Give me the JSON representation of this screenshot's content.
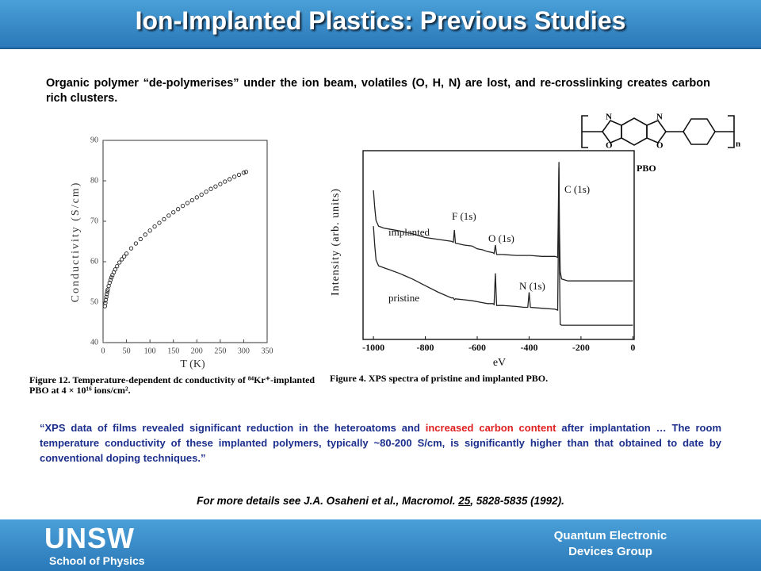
{
  "header": {
    "title": "Ion-Implanted Plastics: Previous Studies"
  },
  "intro": "Organic polymer “de-polymerises” under the ion beam, volatiles (O, H, N) are lost, and re-crosslinking creates carbon rich clusters.",
  "structure": {
    "label": "PBO",
    "repeat": "n"
  },
  "chart_data": [
    {
      "type": "scatter",
      "x_label": "T (K)",
      "y_label": "Conductivity (S/cm)",
      "x": [
        4,
        5,
        6,
        7,
        8,
        9,
        10,
        12,
        14,
        16,
        18,
        20,
        23,
        26,
        30,
        35,
        40,
        45,
        50,
        60,
        70,
        80,
        90,
        100,
        110,
        120,
        130,
        140,
        150,
        160,
        170,
        180,
        190,
        200,
        210,
        220,
        230,
        240,
        250,
        260,
        270,
        280,
        290,
        300,
        305
      ],
      "values": [
        49,
        49.8,
        50.6,
        51.3,
        52,
        52.6,
        53.1,
        54,
        54.8,
        55.5,
        56.1,
        56.7,
        57.4,
        58.1,
        58.9,
        59.8,
        60.6,
        61.3,
        62,
        63.3,
        64.5,
        65.6,
        66.7,
        67.7,
        68.7,
        69.6,
        70.5,
        71.4,
        72.2,
        73,
        73.8,
        74.5,
        75.2,
        75.9,
        76.6,
        77.3,
        78,
        78.6,
        79.2,
        79.8,
        80.4,
        81,
        81.5,
        82,
        82.2
      ],
      "color": "#222222",
      "xlim": [
        0,
        350
      ],
      "xticks": [
        0,
        50,
        100,
        150,
        200,
        250,
        300,
        350
      ],
      "ylim": [
        40,
        90
      ],
      "yticks": [
        40,
        50,
        60,
        70,
        80,
        90
      ],
      "caption": "Figure 12. Temperature-dependent dc conductivity of ⁸⁴Kr⁺-implanted PBO at 4 × 10¹⁶ ions/cm²."
    },
    {
      "type": "line",
      "x_label": "eV",
      "y_label": "Intensity (arb. units)",
      "x": [
        -1000,
        -995,
        -990,
        -980,
        -960,
        -940,
        -900,
        -850,
        -800,
        -750,
        -700,
        -692,
        -688,
        -684,
        -650,
        -620,
        -600,
        -580,
        -560,
        -540,
        -535,
        -530,
        -525,
        -500,
        -450,
        -420,
        -405,
        -400,
        -395,
        -350,
        -300,
        -290,
        -288,
        -285,
        -283,
        -280,
        -275,
        -250,
        -200,
        -100,
        0
      ],
      "series": [
        {
          "name": "implanted",
          "color": "#222222",
          "values": [
            79,
            70,
            63,
            60,
            59,
            58.5,
            57.5,
            56,
            54,
            53,
            52,
            51.5,
            58,
            51,
            50,
            49.5,
            48,
            47.5,
            46.5,
            46,
            45.5,
            50,
            45,
            45,
            44.5,
            44.5,
            44.5,
            44.5,
            44.5,
            44,
            44,
            43.5,
            60,
            94,
            60,
            36,
            32,
            31,
            31,
            31,
            31
          ]
        },
        {
          "name": "pristine",
          "color": "#222222",
          "values": [
            60,
            50,
            42,
            39,
            38,
            37,
            35,
            32,
            28.5,
            25,
            22,
            22,
            21,
            21.5,
            21,
            20.5,
            20,
            19.5,
            19,
            19,
            18.5,
            35,
            18,
            18,
            17.5,
            17,
            17,
            25,
            17,
            16.5,
            16,
            15.5,
            40,
            91,
            40,
            8,
            7.5,
            7.5,
            7.5,
            7.5,
            7.5
          ]
        }
      ],
      "xlim": [
        -1040,
        5
      ],
      "xticks": [
        -1000,
        -800,
        -600,
        -400,
        -200,
        0
      ],
      "ylim": [
        0,
        100
      ],
      "annotations": [
        "F (1s)",
        "O (1s)",
        "N (1s)",
        "C (1s)"
      ],
      "caption": "Figure 4. XPS spectra of pristine and implanted PBO."
    }
  ],
  "quote": [
    "“XPS data of films revealed significant reduction in the heteroatoms and ",
    "increased carbon content",
    " after implantation … The room temperature conductivity of these implanted polymers, typically ~80-200 S/cm, is significantly higher than that obtained to date by conventional doping techniques.”"
  ],
  "reference": [
    "For more details see J.A. Osaheni et al., Macromol. ",
    "25",
    ", 5828-5835 (1992)."
  ],
  "footer": {
    "logo": "UNSW",
    "school": "School of Physics",
    "group": [
      "Quantum Electronic",
      "Devices Group"
    ]
  }
}
